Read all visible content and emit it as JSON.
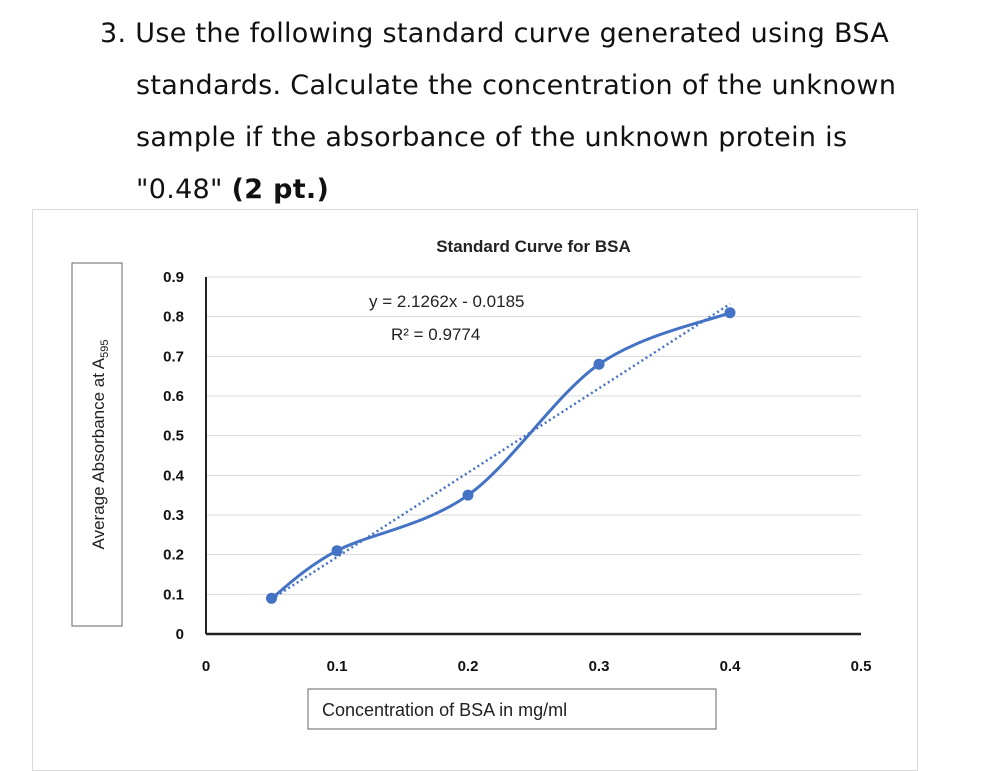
{
  "question": {
    "number": "3.",
    "line1": "Use the following standard curve generated using BSA",
    "line2": "standards. Calculate the concentration of the unknown",
    "line3": "sample if the absorbance of the unknown protein is",
    "line4_text": "\"0.48\"",
    "line4_points": "(2 pt.)"
  },
  "chart_data": {
    "type": "scatter",
    "title": "Standard Curve for BSA",
    "xlabel": "Concentration of BSA in mg/ml",
    "ylabel_main": "Average Absorbance at A",
    "ylabel_sub": "595",
    "xlim": [
      0,
      0.5
    ],
    "ylim": [
      0,
      0.9
    ],
    "x_ticks": [
      0,
      0.1,
      0.2,
      0.3,
      0.4,
      0.5
    ],
    "x_tick_labels": [
      "0",
      "0.1",
      "0.2",
      "0.3",
      "0.4",
      "0.5"
    ],
    "y_ticks": [
      0,
      0.1,
      0.2,
      0.3,
      0.4,
      0.5,
      0.6,
      0.7,
      0.8,
      0.9
    ],
    "y_tick_labels": [
      "0",
      "0.1",
      "0.2",
      "0.3",
      "0.4",
      "0.5",
      "0.6",
      "0.7",
      "0.8",
      "0.9"
    ],
    "grid": true,
    "series": [
      {
        "x": [
          0.05,
          0.1,
          0.2,
          0.3,
          0.4
        ],
        "y": [
          0.09,
          0.21,
          0.35,
          0.68,
          0.81
        ],
        "color": "#4472C4",
        "line": "smooth"
      }
    ],
    "trendline": {
      "slope": 2.1262,
      "intercept": -0.0185,
      "color": "#4472C4",
      "style": "dotted",
      "equation": "y = 2.1262x - 0.0185",
      "r2_label": "R² = 0.9774"
    }
  }
}
